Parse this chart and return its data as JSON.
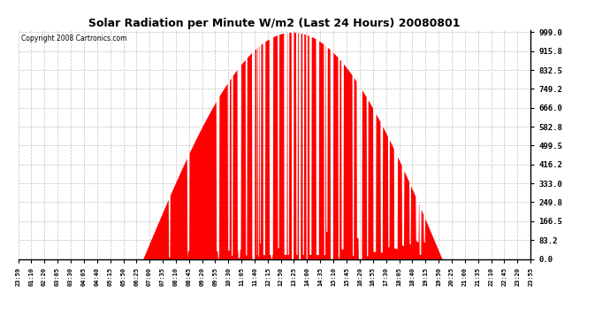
{
  "title": "Solar Radiation per Minute W/m2 (Last 24 Hours) 20080801",
  "copyright": "Copyright 2008 Cartronics.com",
  "y_ticks": [
    0.0,
    83.2,
    166.5,
    249.8,
    333.0,
    416.2,
    499.5,
    582.8,
    666.0,
    749.2,
    832.5,
    915.8,
    999.0
  ],
  "y_max": 999.0,
  "y_min": 0.0,
  "bar_color": "#FF0000",
  "bg_color": "#FFFFFF",
  "grid_color": "#C0C0C0",
  "x_tick_labels": [
    "23:59",
    "01:10",
    "02:20",
    "03:05",
    "03:30",
    "04:05",
    "04:40",
    "05:15",
    "05:50",
    "06:25",
    "07:00",
    "07:35",
    "08:10",
    "08:45",
    "09:20",
    "09:55",
    "10:30",
    "11:05",
    "11:40",
    "12:15",
    "12:50",
    "13:25",
    "14:00",
    "14:35",
    "15:10",
    "15:45",
    "16:20",
    "16:55",
    "17:30",
    "18:05",
    "18:40",
    "19:15",
    "19:50",
    "20:25",
    "21:00",
    "21:35",
    "22:10",
    "22:45",
    "23:20",
    "23:55"
  ],
  "sunrise_minute": 350,
  "sunset_minute": 1190,
  "peak_val": 999.0,
  "figwidth": 6.9,
  "figheight": 3.75,
  "dpi": 100
}
